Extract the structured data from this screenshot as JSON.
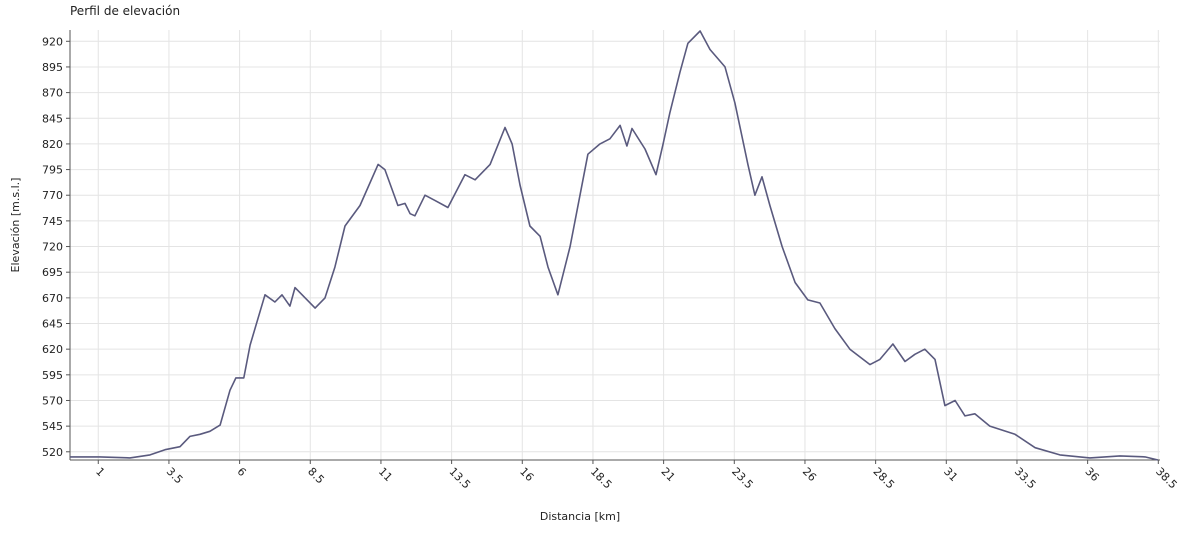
{
  "chart_data": {
    "type": "line",
    "title": "Perfil de elevación",
    "x_label": "Distancia [km]",
    "y_label": "Elevación [m.s.l.]",
    "x": [
      0,
      1.06,
      2.12,
      2.83,
      3.36,
      3.89,
      4.24,
      4.6,
      4.95,
      5.31,
      5.66,
      5.87,
      6.15,
      6.37,
      6.9,
      7.25,
      7.5,
      7.78,
      7.96,
      8.67,
      9.02,
      9.37,
      9.73,
      10.26,
      10.9,
      11.14,
      11.6,
      11.85,
      12.03,
      12.2,
      12.56,
      12.91,
      13.37,
      13.97,
      14.33,
      14.86,
      15.39,
      15.64,
      15.92,
      16.27,
      16.63,
      16.91,
      17.26,
      17.69,
      18.32,
      18.75,
      19.1,
      19.46,
      19.7,
      19.88,
      20.34,
      20.73,
      20.98,
      21.22,
      21.58,
      21.86,
      22.29,
      22.64,
      23.17,
      23.52,
      23.98,
      24.23,
      24.48,
      24.76,
      25.19,
      25.65,
      26.1,
      26.53,
      27.06,
      27.59,
      28.3,
      28.65,
      29.11,
      29.54,
      29.89,
      30.24,
      30.6,
      30.95,
      31.31,
      31.66,
      32.01,
      32.54,
      33.43,
      34.14,
      35.02,
      36.08,
      37.14,
      38.03,
      38.49
    ],
    "series": [
      {
        "name": "Elevación",
        "color": "#5a5a7e",
        "values": [
          515,
          515,
          514,
          517,
          522,
          525,
          535,
          537,
          540,
          546,
          580,
          592,
          592,
          624,
          673,
          666,
          673,
          662,
          680,
          660,
          670,
          700,
          740,
          760,
          800,
          795,
          760,
          762,
          752,
          750,
          770,
          765,
          758,
          790,
          785,
          800,
          836,
          820,
          780,
          740,
          730,
          700,
          673,
          720,
          810,
          820,
          825,
          838,
          818,
          835,
          815,
          790,
          820,
          850,
          890,
          918,
          930,
          912,
          895,
          860,
          800,
          770,
          788,
          760,
          720,
          685,
          668,
          665,
          640,
          620,
          605,
          610,
          625,
          608,
          615,
          620,
          610,
          565,
          570,
          555,
          557,
          545,
          537,
          524,
          517,
          514,
          516,
          515,
          512
        ]
      }
    ],
    "xlim": [
      0,
      38.56
    ],
    "ylim": [
      512,
      931
    ],
    "xticks": [
      1,
      3.5,
      6,
      8.5,
      11,
      13.5,
      16,
      18.5,
      21,
      23.5,
      26,
      28.5,
      31,
      33.5,
      36,
      38.5
    ],
    "yticks": [
      520,
      545,
      570,
      595,
      620,
      645,
      670,
      695,
      720,
      745,
      770,
      795,
      820,
      845,
      870,
      895,
      920
    ],
    "grid": true
  }
}
